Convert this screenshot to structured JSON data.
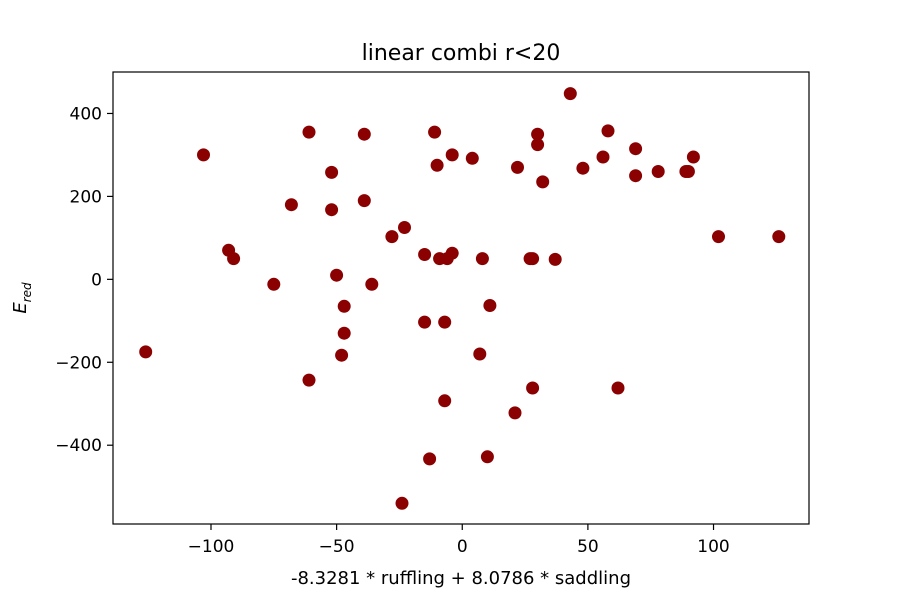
{
  "chart_data": {
    "type": "scatter",
    "title": "linear combi r<20",
    "xlabel": "-8.3281 * ruffling + 8.0786 * saddling",
    "ylabel_main": "E",
    "ylabel_sub": "red",
    "xlim": [
      -139,
      138
    ],
    "ylim": [
      -590,
      500
    ],
    "x_ticks": [
      -100,
      -50,
      0,
      50,
      100
    ],
    "x_tick_labels": [
      "−100",
      "−50",
      "0",
      "50",
      "100"
    ],
    "y_ticks": [
      -400,
      -200,
      0,
      200,
      400
    ],
    "y_tick_labels": [
      "−400",
      "−200",
      "0",
      "200",
      "400"
    ],
    "marker_color": "#8b0000",
    "grid": false,
    "points": [
      {
        "x": -126,
        "y": -175
      },
      {
        "x": -103,
        "y": 300
      },
      {
        "x": -93,
        "y": 70
      },
      {
        "x": -91,
        "y": 50
      },
      {
        "x": -75,
        "y": -12
      },
      {
        "x": -68,
        "y": 180
      },
      {
        "x": -61,
        "y": 355
      },
      {
        "x": -61,
        "y": -243
      },
      {
        "x": -52,
        "y": 258
      },
      {
        "x": -52,
        "y": 168
      },
      {
        "x": -50,
        "y": 10
      },
      {
        "x": -48,
        "y": -183
      },
      {
        "x": -47,
        "y": -65
      },
      {
        "x": -47,
        "y": -130
      },
      {
        "x": -39,
        "y": 350
      },
      {
        "x": -39,
        "y": 190
      },
      {
        "x": -36,
        "y": -12
      },
      {
        "x": -28,
        "y": 103
      },
      {
        "x": -23,
        "y": 125
      },
      {
        "x": -24,
        "y": -540
      },
      {
        "x": -15,
        "y": 60
      },
      {
        "x": -15,
        "y": -103
      },
      {
        "x": -13,
        "y": -433
      },
      {
        "x": -11,
        "y": 355
      },
      {
        "x": -10,
        "y": 275
      },
      {
        "x": -9,
        "y": 50
      },
      {
        "x": -7,
        "y": -293
      },
      {
        "x": -7,
        "y": -103
      },
      {
        "x": -6,
        "y": 50
      },
      {
        "x": -4,
        "y": 300
      },
      {
        "x": -4,
        "y": 63
      },
      {
        "x": 4,
        "y": 292
      },
      {
        "x": 7,
        "y": -180
      },
      {
        "x": 8,
        "y": 50
      },
      {
        "x": 10,
        "y": -428
      },
      {
        "x": 11,
        "y": -63
      },
      {
        "x": 21,
        "y": -322
      },
      {
        "x": 22,
        "y": 270
      },
      {
        "x": 27,
        "y": 50
      },
      {
        "x": 28,
        "y": 50
      },
      {
        "x": 28,
        "y": -262
      },
      {
        "x": 30,
        "y": 325
      },
      {
        "x": 30,
        "y": 350
      },
      {
        "x": 32,
        "y": 235
      },
      {
        "x": 37,
        "y": 48
      },
      {
        "x": 43,
        "y": 448
      },
      {
        "x": 48,
        "y": 268
      },
      {
        "x": 56,
        "y": 295
      },
      {
        "x": 58,
        "y": 358
      },
      {
        "x": 62,
        "y": -262
      },
      {
        "x": 69,
        "y": 315
      },
      {
        "x": 69,
        "y": 250
      },
      {
        "x": 78,
        "y": 260
      },
      {
        "x": 89,
        "y": 260
      },
      {
        "x": 90,
        "y": 260
      },
      {
        "x": 92,
        "y": 295
      },
      {
        "x": 102,
        "y": 103
      },
      {
        "x": 126,
        "y": 103
      }
    ]
  }
}
